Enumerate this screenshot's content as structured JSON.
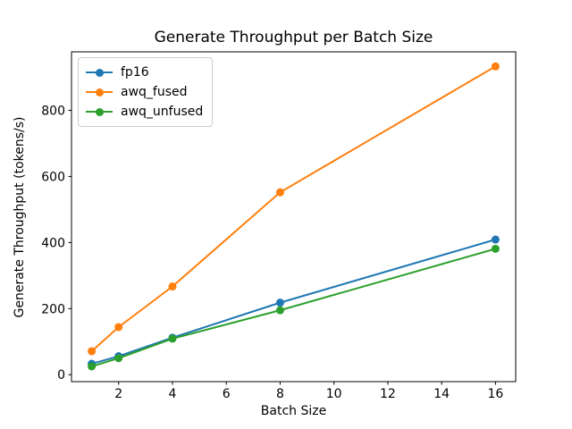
{
  "figure": {
    "background": "#ffffff"
  },
  "chart_data": {
    "type": "line",
    "title": "Generate Throughput per Batch Size",
    "xlabel": "Batch Size",
    "ylabel": "Generate Throughput (tokens/s)",
    "x": [
      1,
      2,
      4,
      8,
      16
    ],
    "series": [
      {
        "name": "fp16",
        "color": "#1f77b4",
        "values": [
          33,
          56,
          112,
          218,
          409
        ]
      },
      {
        "name": "awq_fused",
        "color": "#ff7f0e",
        "values": [
          71,
          144,
          267,
          552,
          933
        ]
      },
      {
        "name": "awq_unfused",
        "color": "#2ca02c",
        "values": [
          25,
          50,
          109,
          195,
          381
        ]
      }
    ],
    "xticks": [
      2,
      4,
      6,
      8,
      10,
      12,
      14,
      16
    ],
    "yticks": [
      0,
      200,
      400,
      600,
      800
    ],
    "xlim": [
      0.25,
      16.75
    ],
    "ylim": [
      -21,
      977
    ],
    "grid": false,
    "legend_position": "upper left",
    "marker": "circle",
    "spine_color": "#000000",
    "text_color": "#000000"
  }
}
